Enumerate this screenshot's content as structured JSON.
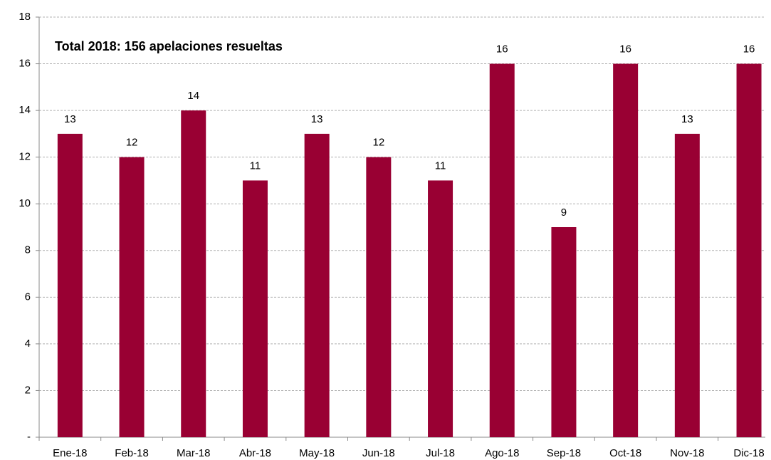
{
  "chart_data": {
    "type": "bar",
    "annotation": "Total 2018: 156 apelaciones resueltas",
    "categories": [
      "Ene-18",
      "Feb-18",
      "Mar-18",
      "Abr-18",
      "May-18",
      "Jun-18",
      "Jul-18",
      "Ago-18",
      "Sep-18",
      "Oct-18",
      "Nov-18",
      "Dic-18"
    ],
    "values": [
      13,
      12,
      14,
      11,
      13,
      12,
      11,
      16,
      9,
      16,
      13,
      16
    ],
    "color": "#990033",
    "ylim": [
      0,
      18
    ],
    "yticks": [
      {
        "value": 0,
        "label": "-"
      },
      2,
      4,
      6,
      8,
      10,
      12,
      14,
      16,
      18
    ],
    "grid": true
  }
}
